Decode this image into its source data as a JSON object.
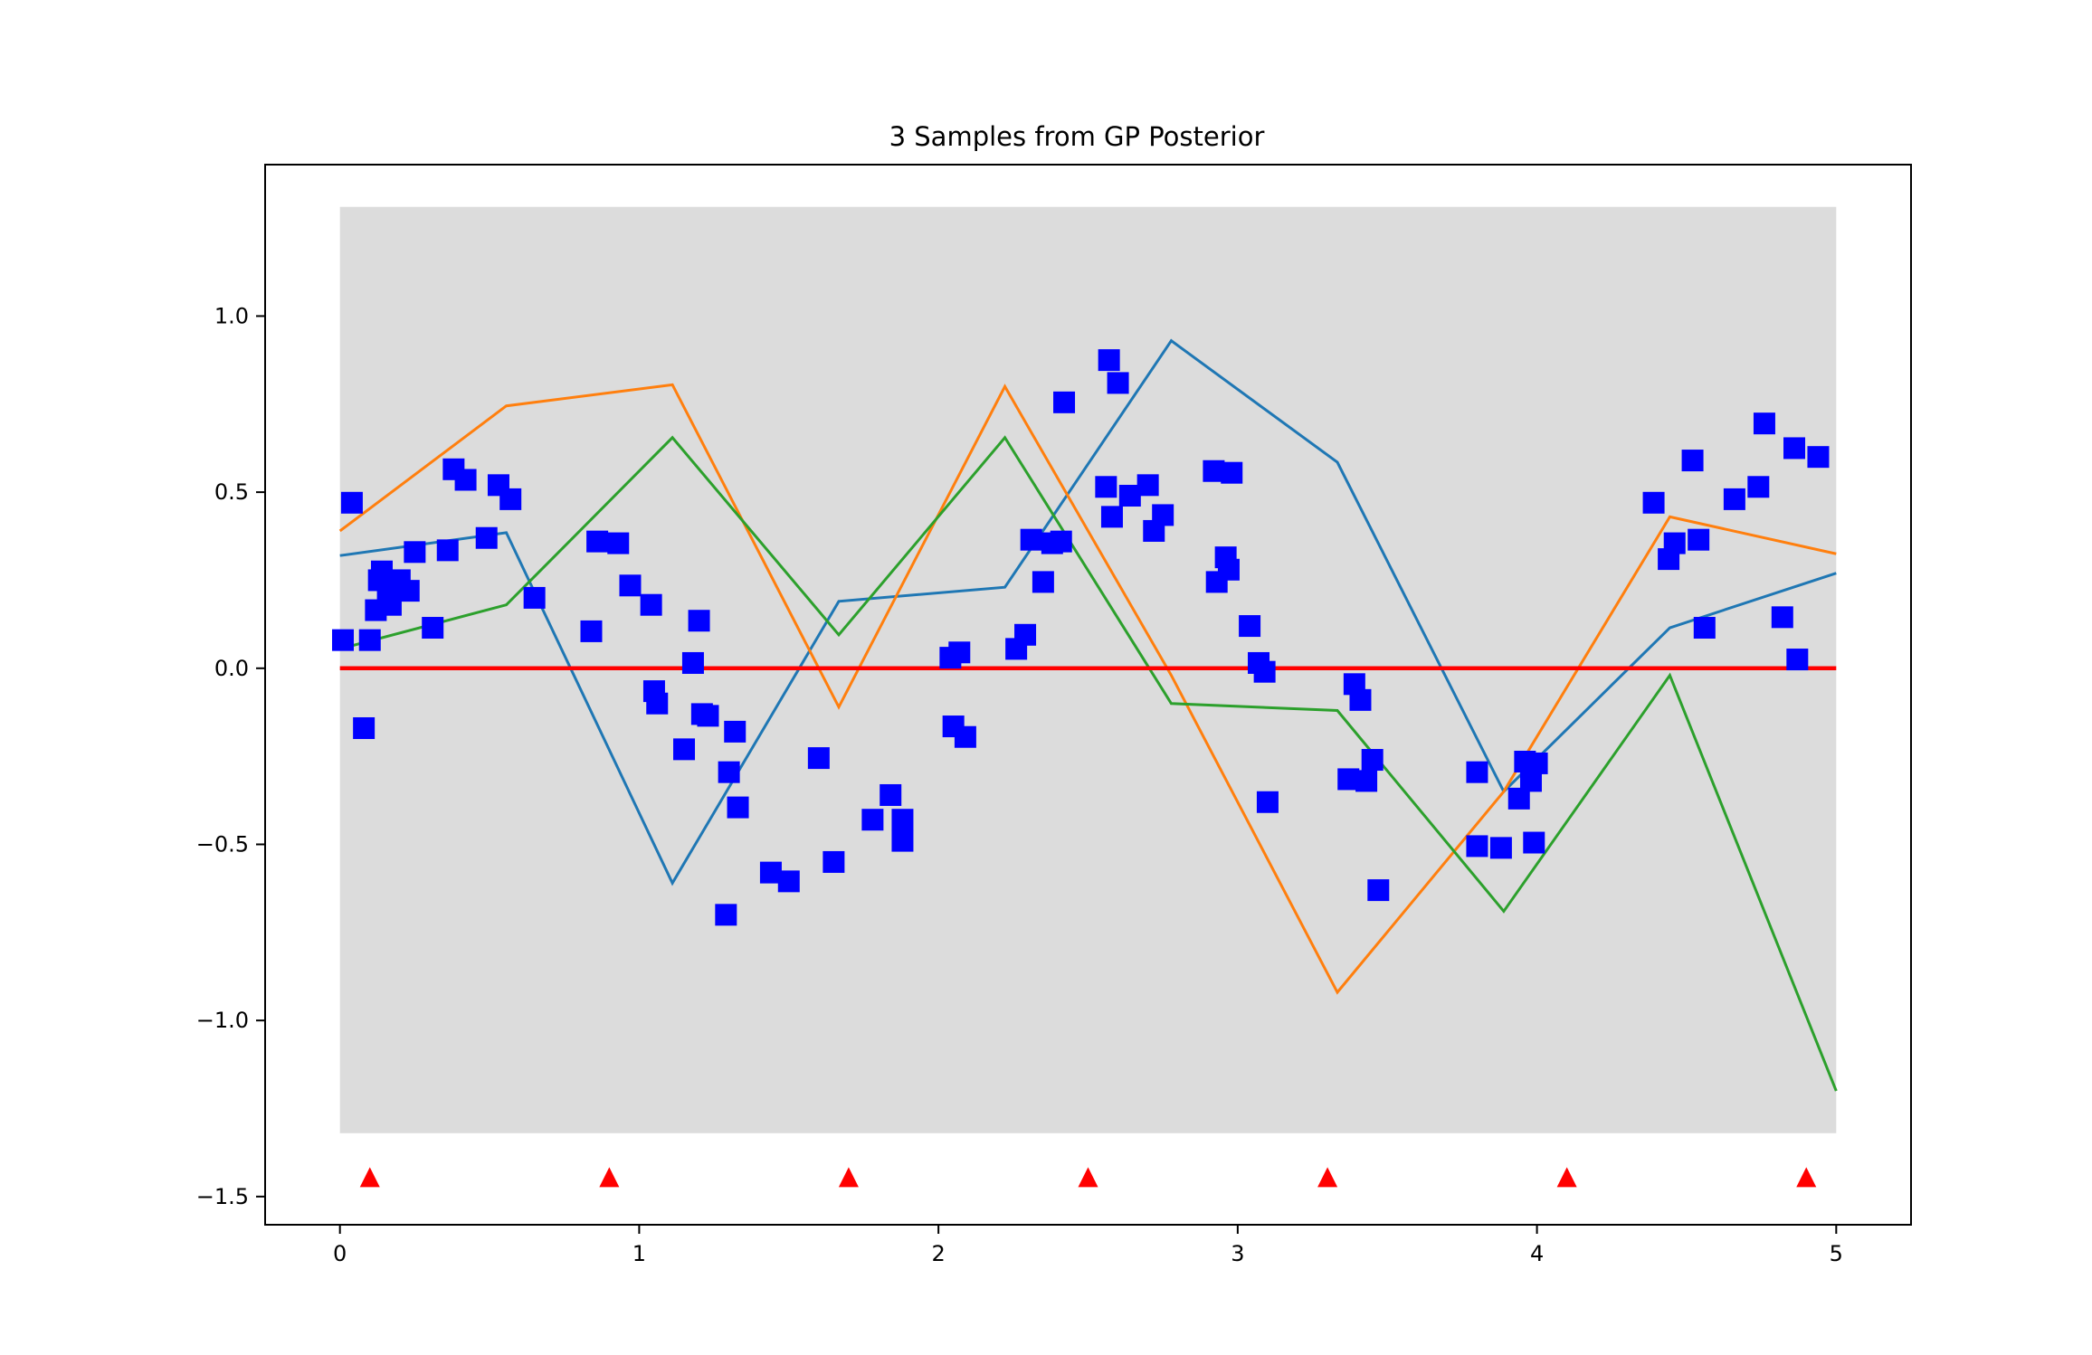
{
  "chart_data": {
    "type": "scatter",
    "title": "3 Samples from GP Posterior",
    "xlabel": "",
    "ylabel": "",
    "xlim": [
      -0.25,
      5.25
    ],
    "ylim": [
      -1.58,
      1.43
    ],
    "grid": false,
    "x_ticks": [
      0,
      1,
      2,
      3,
      4,
      5
    ],
    "x_tick_labels": [
      "0",
      "1",
      "2",
      "3",
      "4",
      "5"
    ],
    "y_ticks": [
      1.0,
      0.5,
      0.0,
      -0.5,
      -1.0,
      -1.5
    ],
    "y_tick_labels": [
      "1.0",
      "0.5",
      "0.0",
      "−0.5",
      "−1.0",
      "−1.5"
    ],
    "shaded_band": {
      "x": [
        0,
        5
      ],
      "y": [
        -1.32,
        1.31
      ],
      "color": "#dcdcdc"
    },
    "mean_line": {
      "x": [
        0,
        5
      ],
      "y": [
        0,
        0
      ],
      "color": "#ff0000"
    },
    "samples": [
      {
        "color": "#1f77b4",
        "x": [
          0,
          0.556,
          1.111,
          1.667,
          2.222,
          2.778,
          3.333,
          3.889,
          4.444,
          5.0
        ],
        "y": [
          0.32,
          0.385,
          -0.61,
          0.19,
          0.23,
          0.93,
          0.585,
          -0.35,
          0.115,
          0.27
        ]
      },
      {
        "color": "#ff7f0e",
        "x": [
          0,
          0.556,
          1.111,
          1.667,
          2.222,
          2.778,
          3.333,
          3.889,
          4.444,
          5.0
        ],
        "y": [
          0.39,
          0.745,
          0.805,
          -0.11,
          0.8,
          -0.02,
          -0.92,
          -0.35,
          0.43,
          0.325
        ]
      },
      {
        "color": "#2ca02c",
        "x": [
          0,
          0.556,
          1.111,
          1.667,
          2.222,
          2.778,
          3.333,
          3.889,
          4.444,
          5.0
        ],
        "y": [
          0.055,
          0.18,
          0.655,
          0.095,
          0.655,
          -0.1,
          -0.12,
          -0.69,
          -0.02,
          -1.2
        ]
      }
    ],
    "observations": {
      "color": "#0000ff",
      "marker": "square",
      "points": [
        [
          0.01,
          0.08
        ],
        [
          0.04,
          0.47
        ],
        [
          0.08,
          -0.17
        ],
        [
          0.1,
          0.08
        ],
        [
          0.12,
          0.165
        ],
        [
          0.13,
          0.25
        ],
        [
          0.14,
          0.275
        ],
        [
          0.16,
          0.22
        ],
        [
          0.17,
          0.18
        ],
        [
          0.19,
          0.24
        ],
        [
          0.2,
          0.25
        ],
        [
          0.23,
          0.22
        ],
        [
          0.25,
          0.33
        ],
        [
          0.31,
          0.115
        ],
        [
          0.36,
          0.335
        ],
        [
          0.38,
          0.565
        ],
        [
          0.42,
          0.535
        ],
        [
          0.49,
          0.37
        ],
        [
          0.53,
          0.52
        ],
        [
          0.57,
          0.48
        ],
        [
          0.65,
          0.2
        ],
        [
          0.84,
          0.105
        ],
        [
          0.86,
          0.36
        ],
        [
          0.93,
          0.355
        ],
        [
          0.97,
          0.235
        ],
        [
          1.04,
          0.18
        ],
        [
          1.05,
          -0.065
        ],
        [
          1.06,
          -0.1
        ],
        [
          1.15,
          -0.23
        ],
        [
          1.18,
          0.015
        ],
        [
          1.2,
          0.135
        ],
        [
          1.21,
          -0.13
        ],
        [
          1.23,
          -0.135
        ],
        [
          1.29,
          -0.7
        ],
        [
          1.3,
          -0.295
        ],
        [
          1.32,
          -0.18
        ],
        [
          1.33,
          -0.395
        ],
        [
          1.44,
          -0.58
        ],
        [
          1.5,
          -0.605
        ],
        [
          1.6,
          -0.255
        ],
        [
          1.65,
          -0.55
        ],
        [
          1.78,
          -0.43
        ],
        [
          1.84,
          -0.36
        ],
        [
          1.88,
          -0.43
        ],
        [
          1.88,
          -0.49
        ],
        [
          2.04,
          0.03
        ],
        [
          2.05,
          -0.165
        ],
        [
          2.07,
          0.045
        ],
        [
          2.09,
          -0.195
        ],
        [
          2.26,
          0.055
        ],
        [
          2.29,
          0.095
        ],
        [
          2.31,
          0.365
        ],
        [
          2.35,
          0.245
        ],
        [
          2.38,
          0.355
        ],
        [
          2.41,
          0.36
        ],
        [
          2.42,
          0.755
        ],
        [
          2.56,
          0.515
        ],
        [
          2.57,
          0.875
        ],
        [
          2.58,
          0.43
        ],
        [
          2.6,
          0.81
        ],
        [
          2.64,
          0.49
        ],
        [
          2.7,
          0.52
        ],
        [
          2.72,
          0.39
        ],
        [
          2.75,
          0.435
        ],
        [
          2.92,
          0.56
        ],
        [
          2.93,
          0.245
        ],
        [
          2.96,
          0.315
        ],
        [
          2.97,
          0.28
        ],
        [
          2.98,
          0.555
        ],
        [
          3.04,
          0.12
        ],
        [
          3.07,
          0.015
        ],
        [
          3.09,
          -0.01
        ],
        [
          3.1,
          -0.38
        ],
        [
          3.37,
          -0.315
        ],
        [
          3.39,
          -0.045
        ],
        [
          3.41,
          -0.09
        ],
        [
          3.43,
          -0.32
        ],
        [
          3.45,
          -0.26
        ],
        [
          3.47,
          -0.63
        ],
        [
          3.8,
          -0.295
        ],
        [
          3.8,
          -0.505
        ],
        [
          3.88,
          -0.51
        ],
        [
          3.94,
          -0.37
        ],
        [
          3.96,
          -0.265
        ],
        [
          3.98,
          -0.32
        ],
        [
          3.99,
          -0.495
        ],
        [
          4.0,
          -0.27
        ],
        [
          4.39,
          0.47
        ],
        [
          4.44,
          0.31
        ],
        [
          4.46,
          0.355
        ],
        [
          4.52,
          0.59
        ],
        [
          4.54,
          0.365
        ],
        [
          4.56,
          0.115
        ],
        [
          4.66,
          0.48
        ],
        [
          4.74,
          0.515
        ],
        [
          4.76,
          0.695
        ],
        [
          4.82,
          0.145
        ],
        [
          4.86,
          0.625
        ],
        [
          4.87,
          0.025
        ],
        [
          4.94,
          0.6
        ]
      ]
    },
    "inducing_points": {
      "color": "#ff0000",
      "marker": "triangle",
      "x": [
        0.1,
        0.9,
        1.7,
        2.5,
        3.3,
        4.1,
        4.9
      ],
      "y": [
        -1.445,
        -1.445,
        -1.445,
        -1.445,
        -1.445,
        -1.445,
        -1.445
      ]
    }
  }
}
